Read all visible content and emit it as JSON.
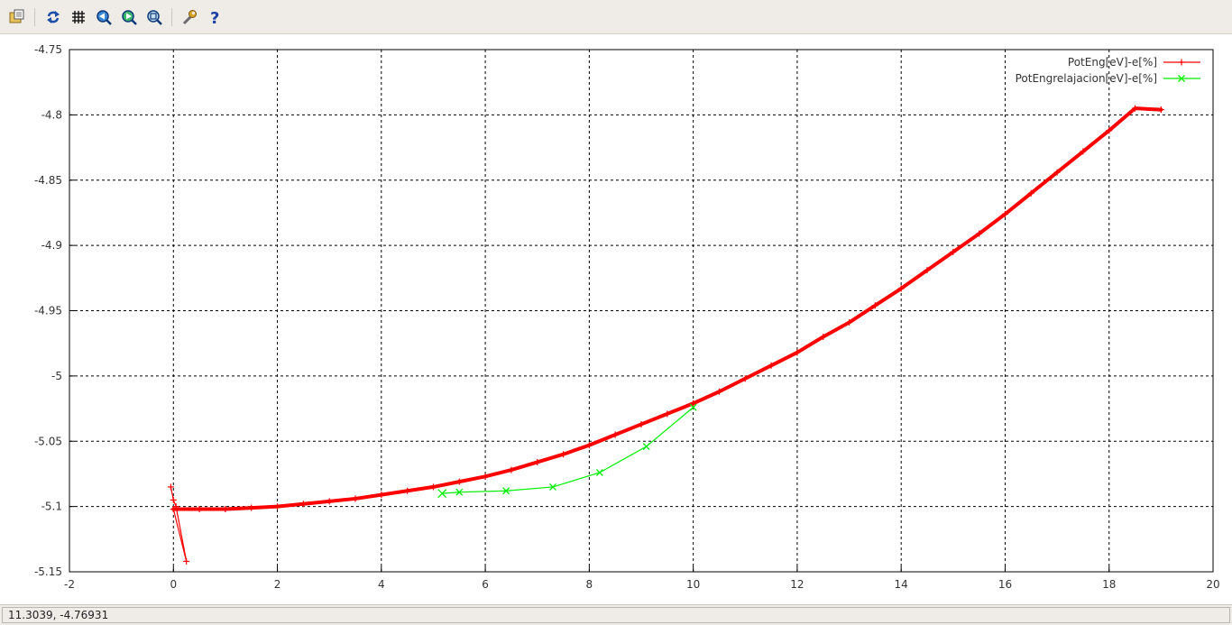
{
  "toolbar": {
    "buttons": [
      {
        "icon": "export-icon"
      },
      {
        "icon": "replot-icon"
      },
      {
        "icon": "grid-icon"
      },
      {
        "icon": "zoom-previous-icon"
      },
      {
        "icon": "zoom-next-icon"
      },
      {
        "icon": "unzoom-icon"
      },
      {
        "icon": "configure-icon"
      },
      {
        "icon": "help-icon"
      }
    ]
  },
  "status": {
    "coords": "11.3039, -4.76931"
  },
  "chart_data": {
    "type": "line",
    "title": "",
    "xlabel": "",
    "ylabel": "",
    "xlim": [
      -2,
      20
    ],
    "ylim": [
      -5.15,
      -4.75
    ],
    "grid": true,
    "legend_position": "top-right",
    "x_ticks": [
      "-2",
      "0",
      "2",
      "4",
      "6",
      "8",
      "10",
      "12",
      "14",
      "16",
      "18",
      "20"
    ],
    "y_ticks": [
      "-4.75",
      "-4.8",
      "-4.85",
      "-4.9",
      "-4.95",
      "-5",
      "-5.05",
      "-5.1",
      "-5.15"
    ],
    "series": [
      {
        "name": "PotEng[eV]-e[%]",
        "color": "#ff0000",
        "marker": "plus",
        "x": [
          -0.05,
          0.0,
          0.05,
          0.25,
          0.0,
          0.5,
          1.0,
          1.5,
          2.0,
          2.5,
          3.0,
          3.5,
          4.0,
          4.5,
          5.0,
          5.5,
          6.0,
          6.5,
          7.0,
          7.5,
          8.0,
          8.5,
          9.0,
          9.5,
          10.0,
          10.5,
          11.0,
          11.5,
          12.0,
          12.5,
          13.0,
          13.5,
          14.0,
          14.5,
          15.0,
          15.5,
          16.0,
          16.5,
          17.0,
          17.5,
          18.0,
          18.5,
          19.0
        ],
        "y": [
          -5.085,
          -5.095,
          -5.1,
          -5.142,
          -5.102,
          -5.102,
          -5.102,
          -5.101,
          -5.1,
          -5.098,
          -5.096,
          -5.094,
          -5.091,
          -5.088,
          -5.085,
          -5.081,
          -5.077,
          -5.072,
          -5.066,
          -5.06,
          -5.053,
          -5.045,
          -5.037,
          -5.029,
          -5.021,
          -5.012,
          -5.002,
          -4.992,
          -4.982,
          -4.97,
          -4.959,
          -4.946,
          -4.933,
          -4.919,
          -4.905,
          -4.891,
          -4.876,
          -4.86,
          -4.844,
          -4.828,
          -4.812,
          -4.795,
          -4.796
        ]
      },
      {
        "name": "PotEngrelajacion[eV]-e[%]",
        "color": "#00ee00",
        "marker": "cross",
        "x": [
          5.17,
          5.5,
          6.4,
          7.3,
          8.2,
          9.1,
          10.0
        ],
        "y": [
          -5.09,
          -5.089,
          -5.088,
          -5.085,
          -5.074,
          -5.054,
          -5.024
        ]
      }
    ]
  }
}
